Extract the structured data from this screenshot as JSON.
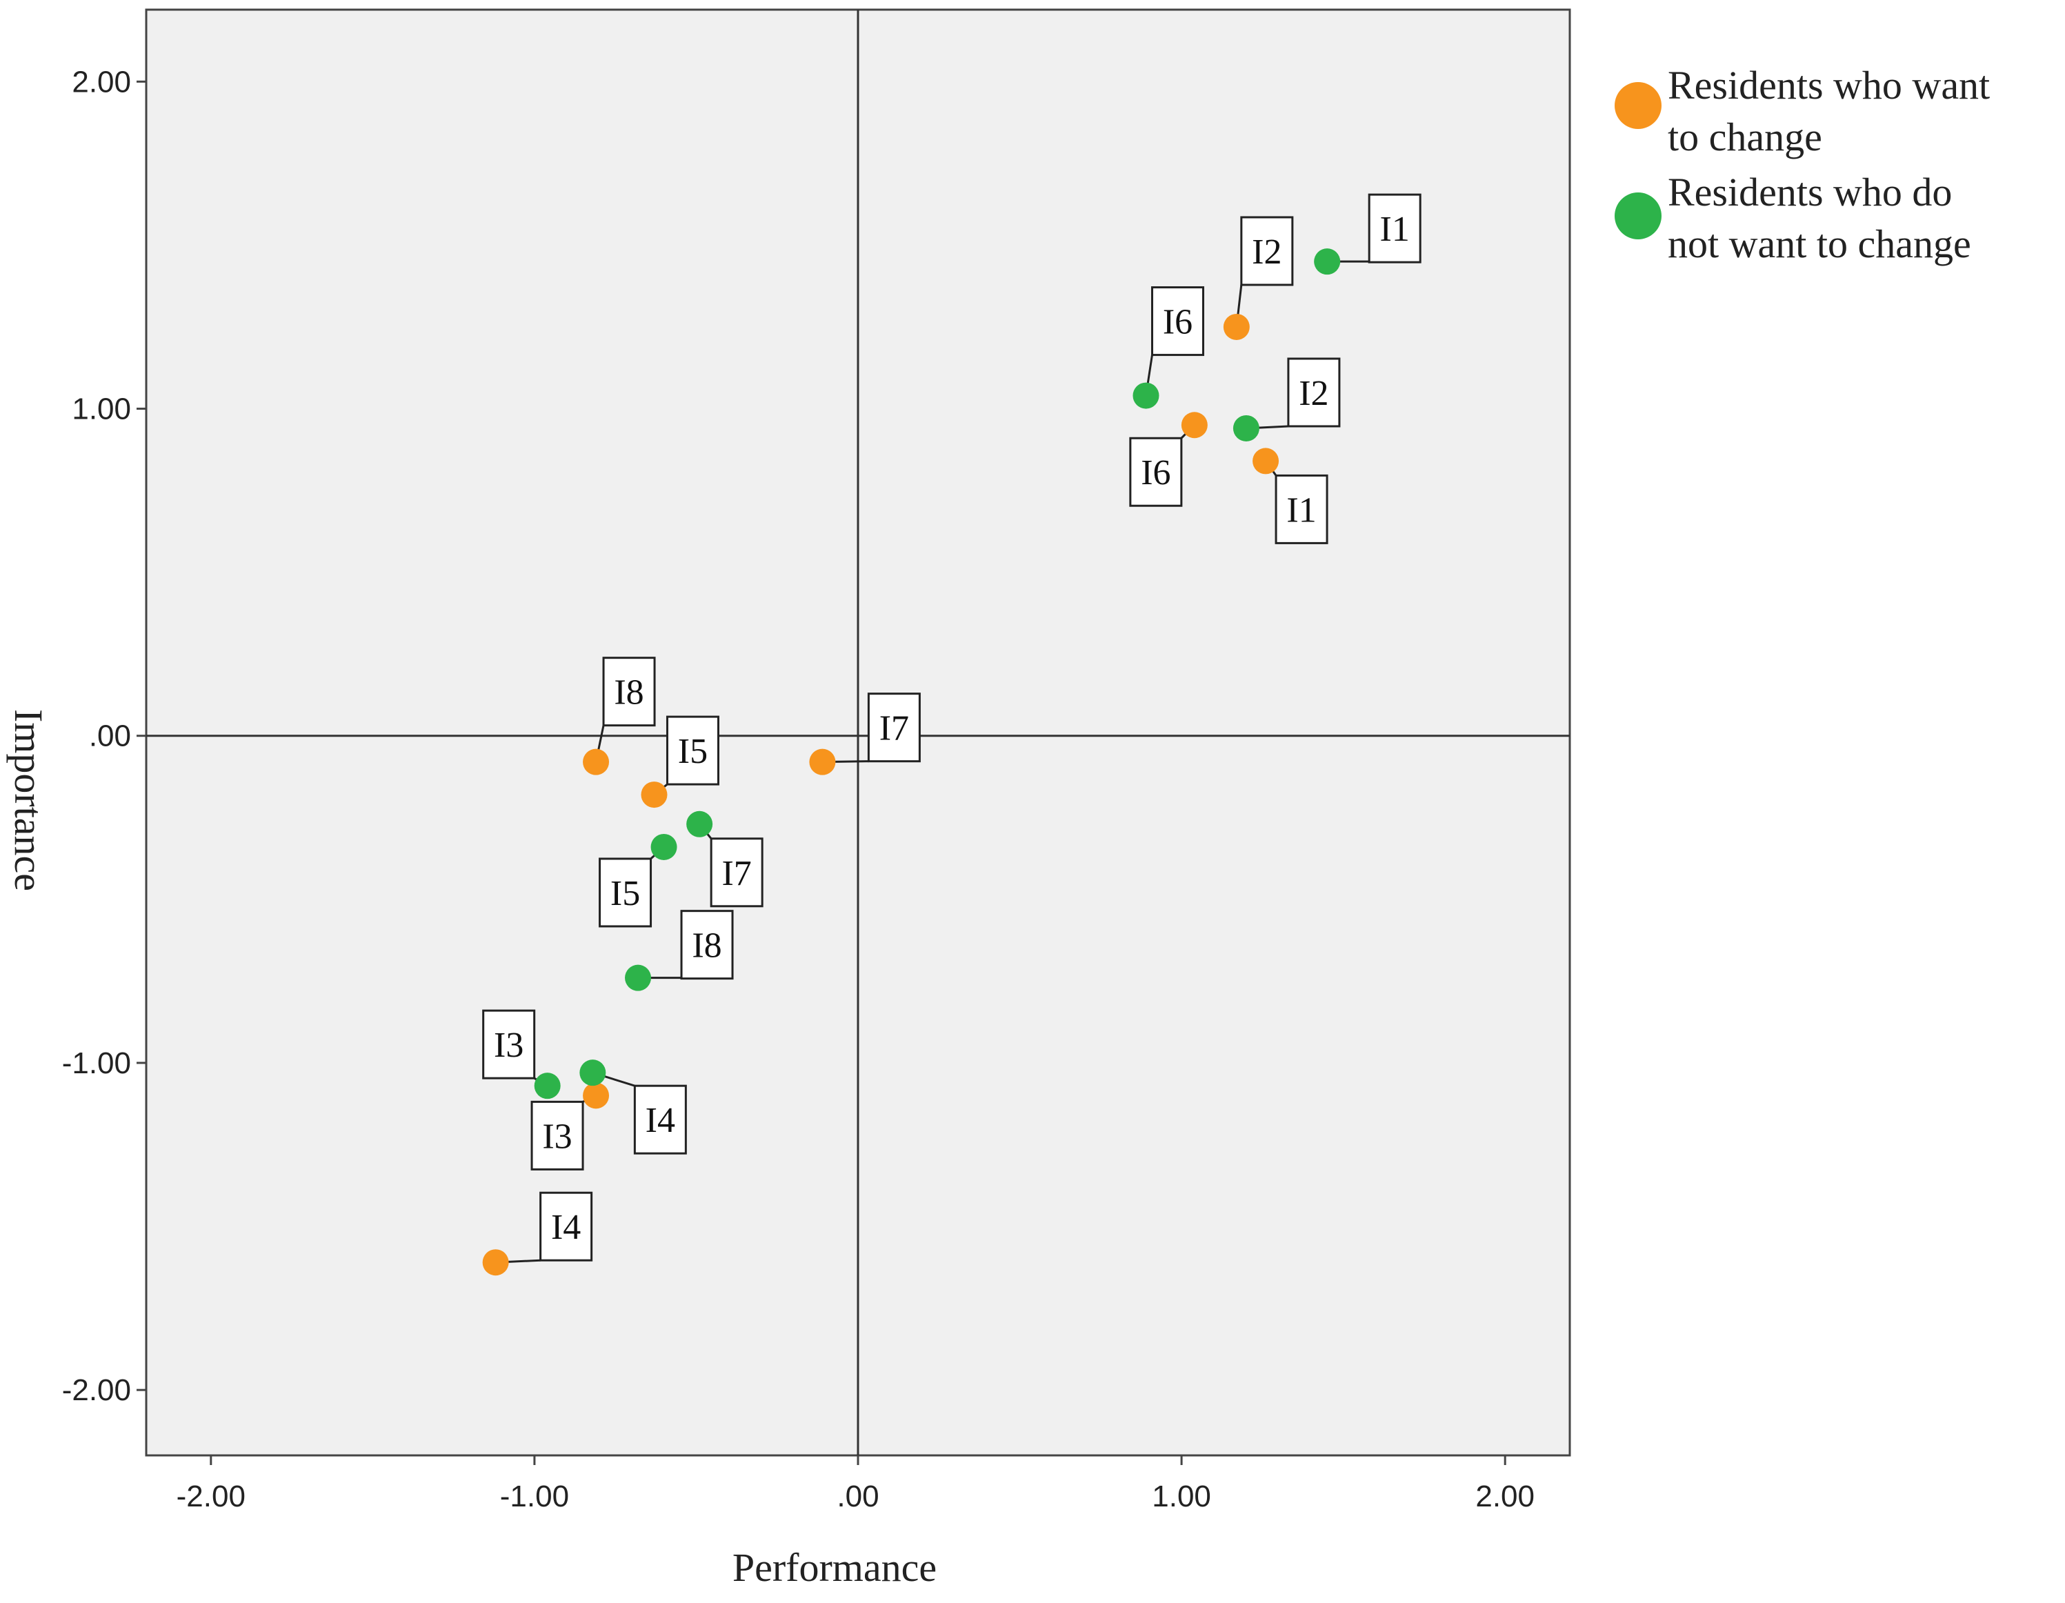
{
  "chart_data": {
    "type": "scatter",
    "title": "",
    "xlabel": "Performance",
    "ylabel": "Importance",
    "xlim": [
      -2.2,
      2.2
    ],
    "ylim": [
      -2.2,
      2.22
    ],
    "xticks": [
      -2.0,
      -1.0,
      0.0,
      1.0,
      2.0
    ],
    "yticks": [
      -2.0,
      -1.0,
      0.0,
      1.0,
      2.0
    ],
    "xtick_labels": [
      "-2.00",
      "-1.00",
      ".00",
      "1.00",
      "2.00"
    ],
    "ytick_labels": [
      "-2.00",
      "-1.00",
      ".00",
      "1.00",
      "2.00"
    ],
    "reference_lines": {
      "x": 0.0,
      "y": 0.0
    },
    "grid": false,
    "legend_position": "outside-right-top",
    "series": [
      {
        "name": "Residents who want to change",
        "legend_lines": [
          "Residents who want",
          "to change"
        ],
        "color": "#F7941D",
        "points": [
          {
            "label": "I1",
            "x": 1.26,
            "y": 0.84
          },
          {
            "label": "I2",
            "x": 1.17,
            "y": 1.25
          },
          {
            "label": "I3",
            "x": -0.81,
            "y": -1.1
          },
          {
            "label": "I4",
            "x": -1.12,
            "y": -1.61
          },
          {
            "label": "I5",
            "x": -0.63,
            "y": -0.18
          },
          {
            "label": "I6",
            "x": 1.04,
            "y": 0.95
          },
          {
            "label": "I7",
            "x": -0.11,
            "y": -0.08
          },
          {
            "label": "I8",
            "x": -0.81,
            "y": -0.08
          }
        ]
      },
      {
        "name": "Residents who do not want to change",
        "legend_lines": [
          "Residents who do",
          "not want to change"
        ],
        "color": "#2DB34A",
        "points": [
          {
            "label": "I1",
            "x": 1.45,
            "y": 1.45
          },
          {
            "label": "I2",
            "x": 1.2,
            "y": 0.94
          },
          {
            "label": "I3",
            "x": -0.96,
            "y": -1.07
          },
          {
            "label": "I4",
            "x": -0.82,
            "y": -1.03
          },
          {
            "label": "I5",
            "x": -0.6,
            "y": -0.34
          },
          {
            "label": "I6",
            "x": 0.89,
            "y": 1.04
          },
          {
            "label": "I7",
            "x": -0.49,
            "y": -0.27
          },
          {
            "label": "I8",
            "x": -0.68,
            "y": -0.74
          }
        ]
      }
    ]
  },
  "colors": {
    "plot_background": "#F0F0F0",
    "frame": "#444444",
    "orange": "#F7941D",
    "green": "#2DB34A"
  }
}
